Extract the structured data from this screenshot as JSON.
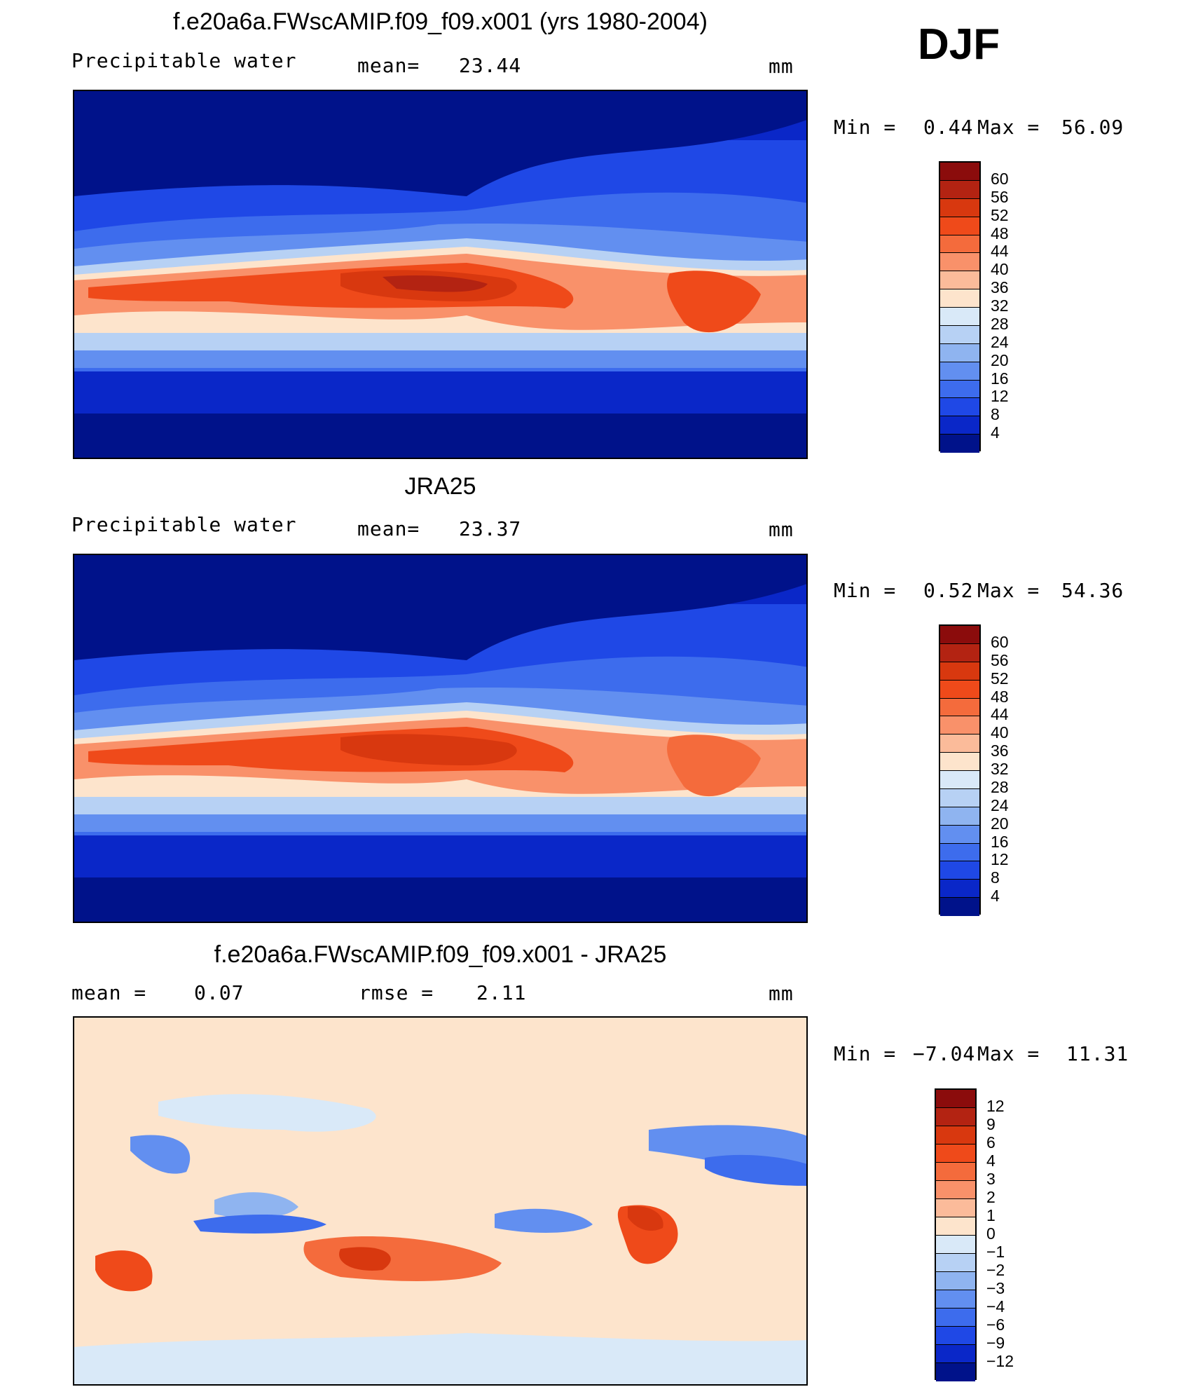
{
  "season": "DJF",
  "panels": [
    {
      "title": "f.e20a6a.FWscAMIP.f09_f09.x001 (yrs 1980-2004)",
      "left_label": "Precipitable  water",
      "stat1_label": "mean=",
      "stat1_value": "23.44",
      "stat2_label": "",
      "stat2_value": "",
      "units": "mm",
      "min_label": "Min  =",
      "min_value": "0.44",
      "max_label": "Max  =",
      "max_value": "56.09",
      "colorbar": {
        "ticks": [
          "60",
          "56",
          "52",
          "48",
          "44",
          "40",
          "36",
          "32",
          "28",
          "24",
          "20",
          "16",
          "12",
          "8",
          "4"
        ],
        "colors": [
          "#8b0c0c",
          "#b32312",
          "#d8380f",
          "#ef4a1a",
          "#f46b3c",
          "#f9916a",
          "#fbbb9a",
          "#fde4cc",
          "#d9e9f8",
          "#b7d1f4",
          "#8fb4f0",
          "#628ff0",
          "#3d6ced",
          "#1f48e6",
          "#0a27c8",
          "#00128a"
        ]
      }
    },
    {
      "title": "JRA25",
      "left_label": "Precipitable  water",
      "stat1_label": "mean=",
      "stat1_value": "23.37",
      "stat2_label": "",
      "stat2_value": "",
      "units": "mm",
      "min_label": "Min  =",
      "min_value": "0.52",
      "max_label": "Max  =",
      "max_value": "54.36",
      "colorbar": {
        "ticks": [
          "60",
          "56",
          "52",
          "48",
          "44",
          "40",
          "36",
          "32",
          "28",
          "24",
          "20",
          "16",
          "12",
          "8",
          "4"
        ],
        "colors": [
          "#8b0c0c",
          "#b32312",
          "#d8380f",
          "#ef4a1a",
          "#f46b3c",
          "#f9916a",
          "#fbbb9a",
          "#fde4cc",
          "#d9e9f8",
          "#b7d1f4",
          "#8fb4f0",
          "#628ff0",
          "#3d6ced",
          "#1f48e6",
          "#0a27c8",
          "#00128a"
        ]
      }
    },
    {
      "title": "f.e20a6a.FWscAMIP.f09_f09.x001 - JRA25",
      "left_label": "mean  =",
      "stat1_label": "0.07",
      "stat1_value": "",
      "stat2_label": "rmse  =",
      "stat2_value": "2.11",
      "units": "mm",
      "min_label": "Min  =",
      "min_value": "−7.04",
      "max_label": "Max  =",
      "max_value": "11.31",
      "colorbar": {
        "ticks": [
          "12",
          "9",
          "6",
          "4",
          "3",
          "2",
          "1",
          "0",
          "−1",
          "−2",
          "−3",
          "−4",
          "−6",
          "−9",
          "−12"
        ],
        "colors": [
          "#8b0c0c",
          "#b32312",
          "#d8380f",
          "#ef4a1a",
          "#f46b3c",
          "#f9916a",
          "#fbbb9a",
          "#fde4cc",
          "#d9e9f8",
          "#b7d1f4",
          "#8fb4f0",
          "#628ff0",
          "#3d6ced",
          "#1f48e6",
          "#0a27c8",
          "#00128a"
        ]
      }
    }
  ],
  "field_colors": {
    "deep_blue": "#00128a",
    "mid_blue": "#1f48e6",
    "light_blue": "#8fb4f0",
    "pale": "#fde4cc",
    "orange": "#f46b3c",
    "red": "#d8380f",
    "dark_red": "#b32312"
  }
}
